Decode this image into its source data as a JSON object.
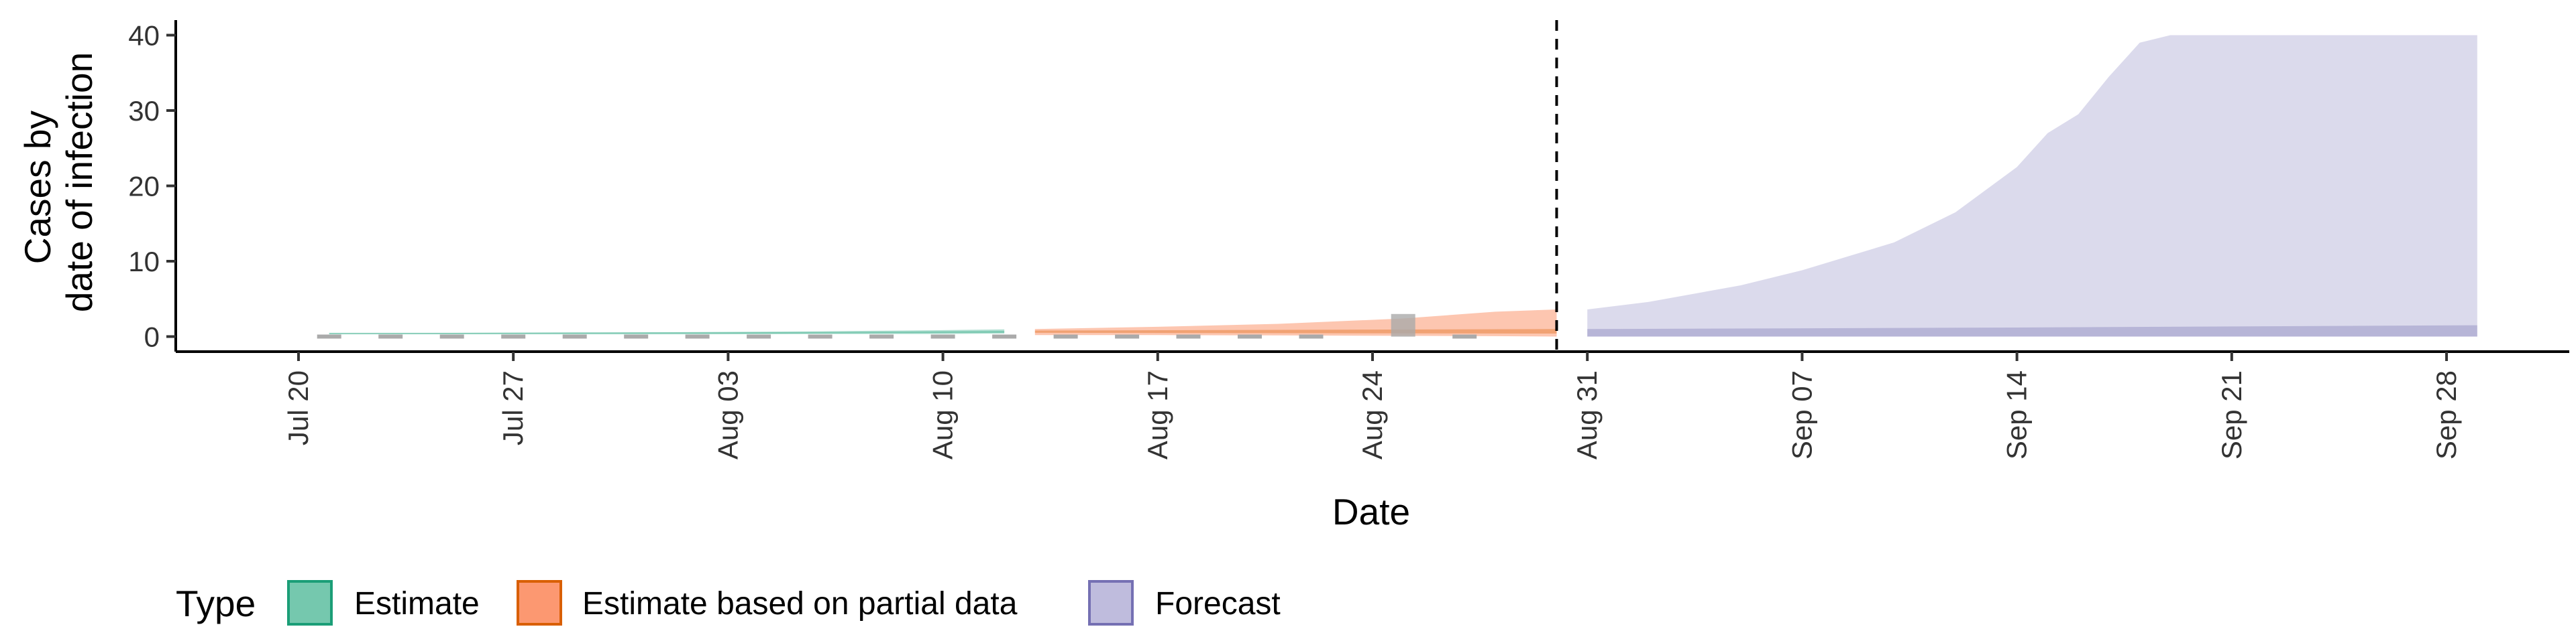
{
  "chart_data": {
    "type": "area",
    "xlabel": "Date",
    "ylabel_lines": [
      "Cases by",
      "date of infection"
    ],
    "x_range": [
      "2020-07-16",
      "2020-10-02"
    ],
    "ylim": [
      -2,
      42
    ],
    "y_ticks": [
      0,
      10,
      20,
      30,
      40
    ],
    "x_ticks": [
      {
        "date": "2020-07-20",
        "label": "Jul 20"
      },
      {
        "date": "2020-07-27",
        "label": "Jul 27"
      },
      {
        "date": "2020-08-03",
        "label": "Aug 03"
      },
      {
        "date": "2020-08-10",
        "label": "Aug 10"
      },
      {
        "date": "2020-08-17",
        "label": "Aug 17"
      },
      {
        "date": "2020-08-24",
        "label": "Aug 24"
      },
      {
        "date": "2020-08-31",
        "label": "Aug 31"
      },
      {
        "date": "2020-09-07",
        "label": "Sep 07"
      },
      {
        "date": "2020-09-14",
        "label": "Sep 14"
      },
      {
        "date": "2020-09-21",
        "label": "Sep 21"
      },
      {
        "date": "2020-09-28",
        "label": "Sep 28"
      }
    ],
    "forecast_line_date": "2020-08-30",
    "grid": false,
    "legend_position": "bottom-left",
    "legend_title": "Type",
    "series": [
      {
        "name": "Estimate",
        "fill_color": "#66c2a5",
        "border_color": "#1b9e77",
        "outer_band": [
          [
            "2020-07-21",
            0.3,
            0.5
          ],
          [
            "2020-07-25",
            0.3,
            0.5
          ],
          [
            "2020-07-29",
            0.3,
            0.55
          ],
          [
            "2020-08-02",
            0.3,
            0.6
          ],
          [
            "2020-08-06",
            0.35,
            0.7
          ],
          [
            "2020-08-10",
            0.35,
            0.85
          ],
          [
            "2020-08-12",
            0.4,
            0.95
          ]
        ],
        "inner_band": [
          [
            "2020-07-21",
            0.35,
            0.45
          ],
          [
            "2020-08-06",
            0.4,
            0.6
          ],
          [
            "2020-08-12",
            0.5,
            0.75
          ]
        ]
      },
      {
        "name": "Estimate based on partial data",
        "fill_color": "#fc8d62",
        "border_color": "#d95f02",
        "outer_band": [
          [
            "2020-08-13",
            0.2,
            1.0
          ],
          [
            "2020-08-17",
            0.2,
            1.3
          ],
          [
            "2020-08-21",
            0.15,
            1.7
          ],
          [
            "2020-08-25",
            0.1,
            2.4
          ],
          [
            "2020-08-28",
            0.05,
            3.3
          ],
          [
            "2020-08-30",
            0.0,
            3.6
          ]
        ],
        "inner_band": [
          [
            "2020-08-13",
            0.5,
            0.8
          ],
          [
            "2020-08-30",
            0.4,
            1.0
          ]
        ]
      },
      {
        "name": "Forecast",
        "fill_color": "#b8b5d9",
        "border_color": "#7570b3",
        "outer_band": [
          [
            "2020-08-31",
            0.0,
            3.6
          ],
          [
            "2020-09-02",
            0.0,
            4.6
          ],
          [
            "2020-09-05",
            0.0,
            6.8
          ],
          [
            "2020-09-07",
            0.0,
            8.8
          ],
          [
            "2020-09-10",
            0.0,
            12.5
          ],
          [
            "2020-09-12",
            0.0,
            16.5
          ],
          [
            "2020-09-14",
            0.0,
            22.5
          ],
          [
            "2020-09-15",
            0.0,
            27.0
          ],
          [
            "2020-09-16",
            0.0,
            29.5
          ],
          [
            "2020-09-17",
            0.0,
            34.5
          ],
          [
            "2020-09-18",
            0.0,
            39.0
          ],
          [
            "2020-09-19",
            0.0,
            40.0
          ],
          [
            "2020-09-29",
            0.0,
            40.0
          ]
        ],
        "inner_band": [
          [
            "2020-08-31",
            0.0,
            1.0
          ],
          [
            "2020-09-14",
            0.0,
            1.2
          ],
          [
            "2020-09-29",
            0.0,
            1.5
          ]
        ]
      }
    ],
    "observed_cases": [
      [
        "2020-07-21",
        0
      ],
      [
        "2020-07-23",
        0
      ],
      [
        "2020-07-25",
        0
      ],
      [
        "2020-07-27",
        0
      ],
      [
        "2020-07-29",
        0
      ],
      [
        "2020-07-31",
        0
      ],
      [
        "2020-08-02",
        0
      ],
      [
        "2020-08-04",
        0
      ],
      [
        "2020-08-06",
        0
      ],
      [
        "2020-08-08",
        0
      ],
      [
        "2020-08-10",
        0
      ],
      [
        "2020-08-12",
        0
      ],
      [
        "2020-08-14",
        0
      ],
      [
        "2020-08-16",
        0
      ],
      [
        "2020-08-18",
        0
      ],
      [
        "2020-08-20",
        0
      ],
      [
        "2020-08-22",
        0
      ],
      [
        "2020-08-25",
        3
      ],
      [
        "2020-08-27",
        0
      ]
    ],
    "observed_color": "#aaaaaa"
  }
}
